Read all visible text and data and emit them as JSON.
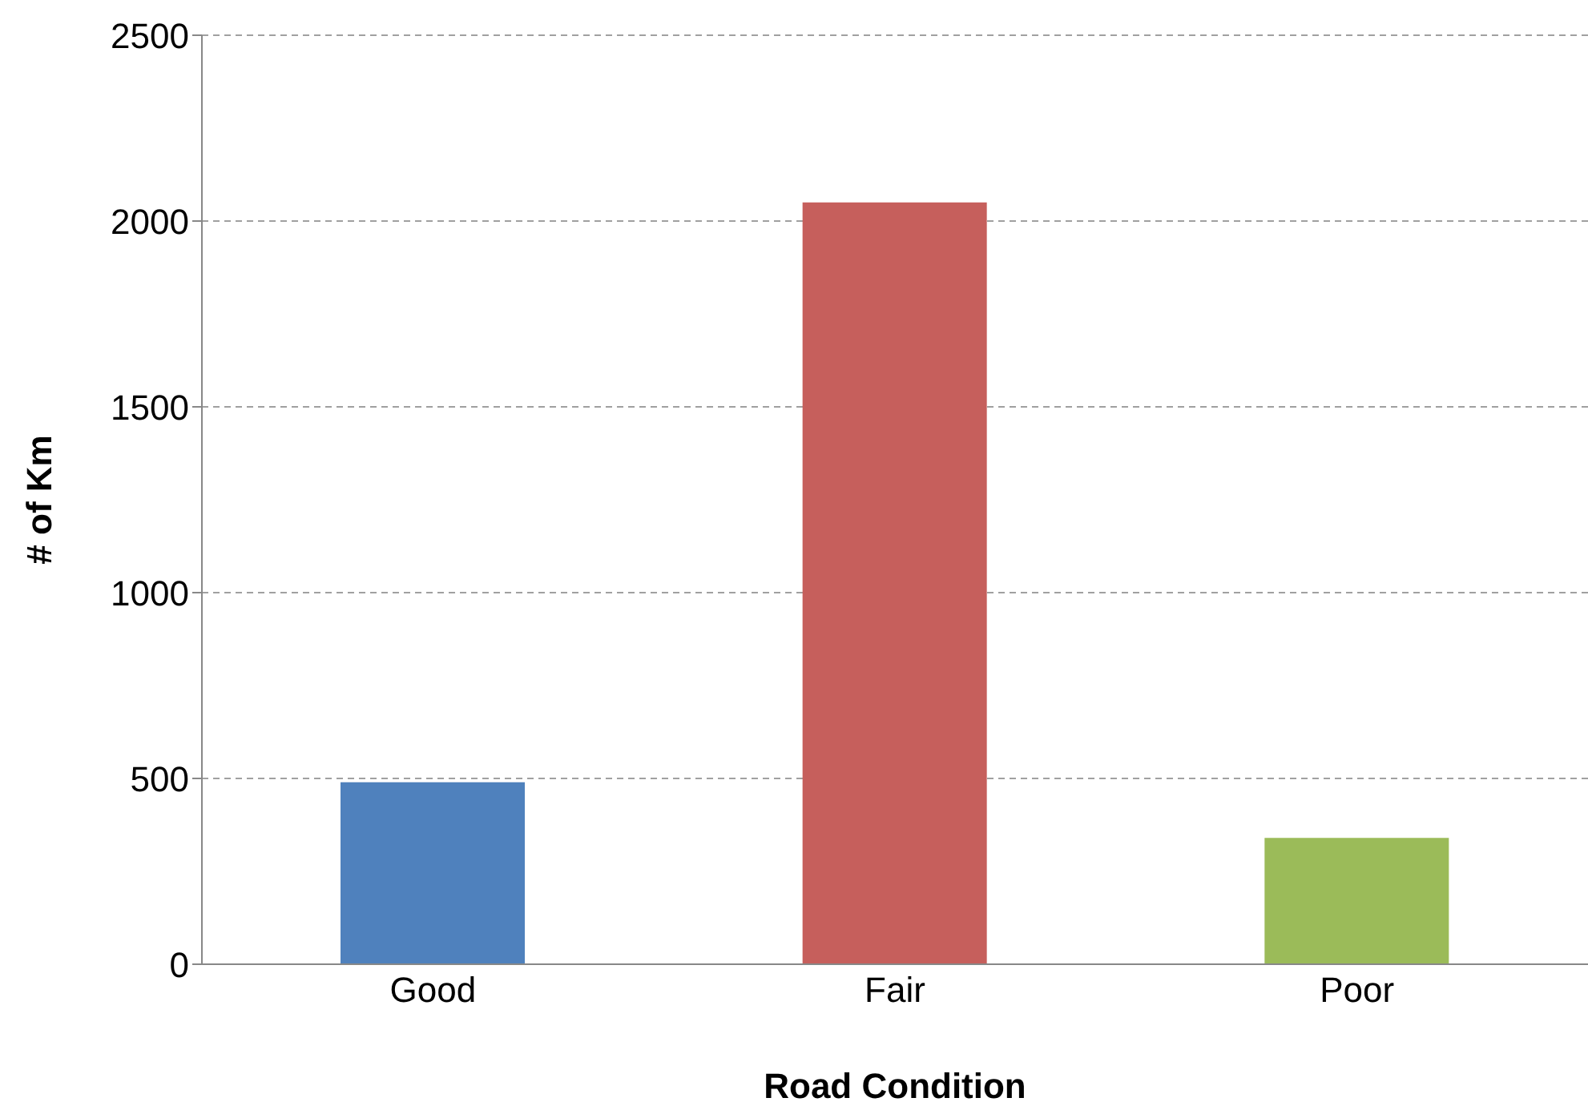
{
  "chart_data": {
    "type": "bar",
    "xlabel": "Road Condition",
    "ylabel": "# of Km",
    "categories": [
      "Good",
      "Fair",
      "Poor"
    ],
    "values": [
      490,
      2050,
      340
    ],
    "colors": [
      "#4f81bd",
      "#c65f5c",
      "#9bbb59"
    ],
    "ylim": [
      0,
      2500
    ],
    "yticks": [
      0,
      500,
      1000,
      1500,
      2000,
      2500
    ],
    "grid": "y"
  }
}
